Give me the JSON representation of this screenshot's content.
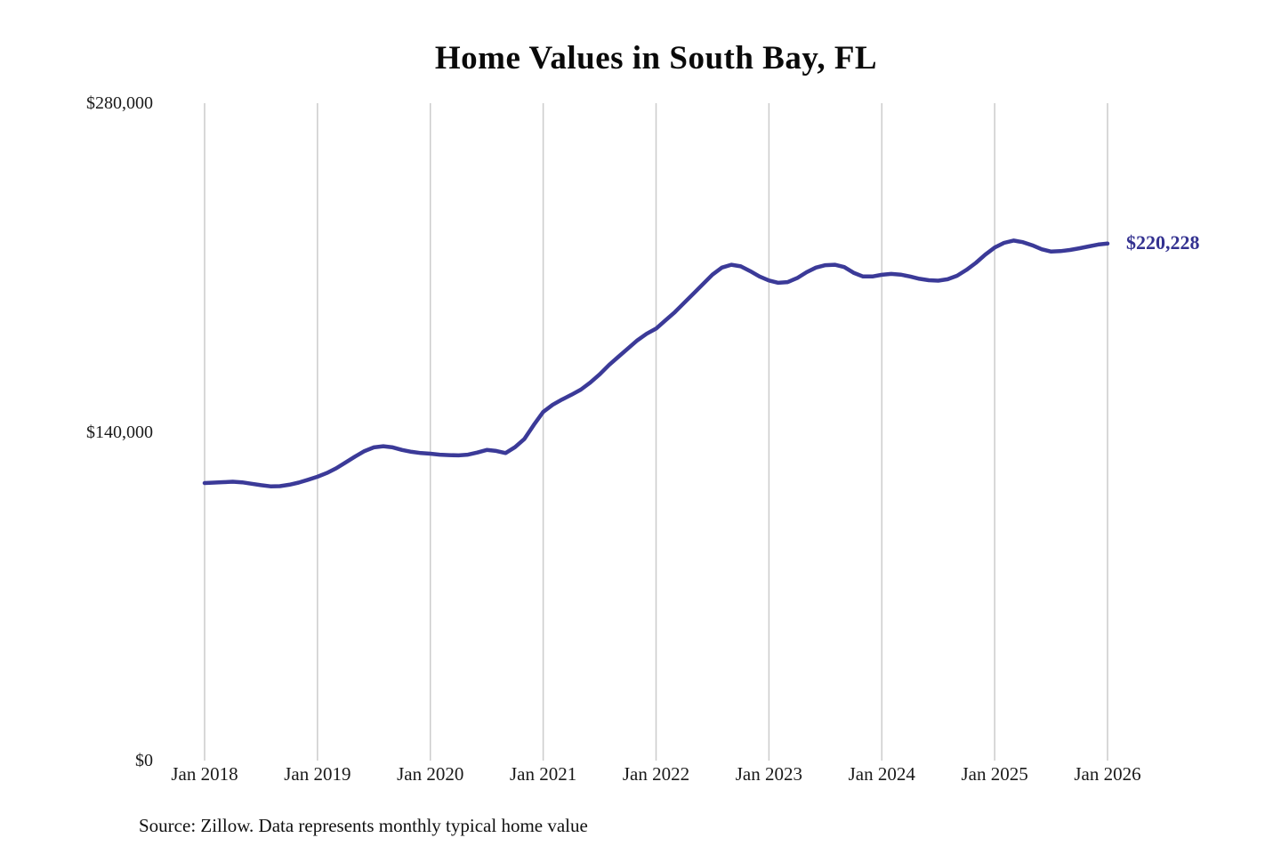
{
  "title": "Home Values in South Bay, FL",
  "source_note": "Source: Zillow. Data represents monthly typical home value",
  "chart_data": {
    "type": "line",
    "title": "Home Values in South Bay, FL",
    "x_tick_labels": [
      "Jan 2018",
      "Jan 2019",
      "Jan 2020",
      "Jan 2021",
      "Jan 2022",
      "Jan 2023",
      "Jan 2024",
      "Jan 2025",
      "Jan 2026"
    ],
    "y_ticks": [
      {
        "label": "$0",
        "value": 0
      },
      {
        "label": "$140,000",
        "value": 140000
      },
      {
        "label": "$280,000",
        "value": 280000
      }
    ],
    "ylim": [
      0,
      280000
    ],
    "grid": "vertical-only",
    "legend": false,
    "line_color": "#3b3a98",
    "grid_color": "#cccccc",
    "end_label": "$220,228",
    "end_value": 220228,
    "series": [
      {
        "name": "Monthly typical home value",
        "start_month": "2018-01",
        "frequency": "monthly",
        "values": [
          118200,
          118400,
          118600,
          118800,
          118500,
          117900,
          117300,
          116800,
          116900,
          117500,
          118400,
          119600,
          120900,
          122500,
          124500,
          127000,
          129500,
          131800,
          133400,
          133900,
          133400,
          132300,
          131500,
          131000,
          130700,
          130300,
          130100,
          130000,
          130300,
          131200,
          132300,
          131900,
          131000,
          133500,
          137000,
          143000,
          148500,
          151500,
          153800,
          155800,
          158000,
          161000,
          164500,
          168500,
          172000,
          175500,
          179000,
          181800,
          184000,
          187500,
          191000,
          195000,
          199000,
          203000,
          207000,
          210000,
          211200,
          210500,
          208500,
          206200,
          204500,
          203500,
          203800,
          205500,
          208000,
          210000,
          211000,
          211200,
          210200,
          207800,
          206200,
          206200,
          206900,
          207300,
          207000,
          206200,
          205200,
          204600,
          204400,
          205000,
          206500,
          209000,
          212000,
          215500,
          218500,
          220500,
          221500,
          220800,
          219500,
          217800,
          216800,
          217000,
          217500,
          218200,
          219000,
          219800,
          220228
        ]
      }
    ]
  }
}
